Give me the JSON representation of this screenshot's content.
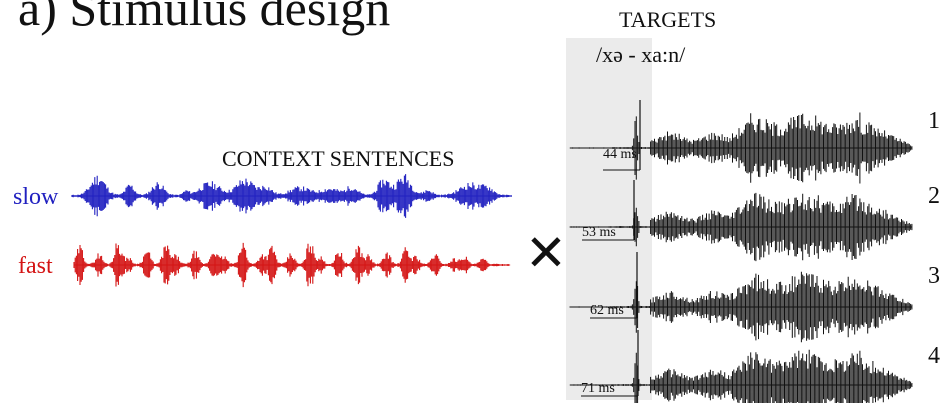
{
  "figure": {
    "title": "a) Stimulus design",
    "context_label": "CONTEXT SENTENCES",
    "targets_label": "TARGETS",
    "targets_ipa": "/xə - xa:n/",
    "combine_symbol": "✕",
    "colors": {
      "slow": "#2020c0",
      "fast": "#d41414",
      "target": "#111111",
      "panel": "#ebebeb"
    }
  },
  "contexts": [
    {
      "label": "slow"
    },
    {
      "label": "fast"
    }
  ],
  "targets": [
    {
      "number": "1",
      "duration": "44 ms"
    },
    {
      "number": "2",
      "duration": "53 ms"
    },
    {
      "number": "3",
      "duration": "62 ms"
    },
    {
      "number": "4",
      "duration": "71 ms"
    }
  ]
}
